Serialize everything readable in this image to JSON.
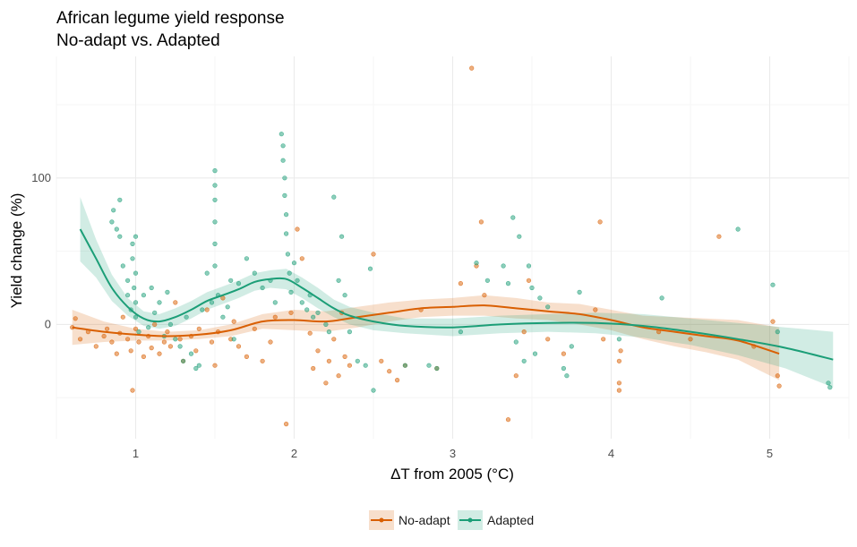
{
  "chart_data": {
    "type": "scatter",
    "title": "African legume yield response",
    "subtitle": "No-adapt vs. Adapted",
    "xlabel": "ΔT from 2005 (°C)",
    "ylabel": "Yield change (%)",
    "xlim": [
      0.5,
      5.5
    ],
    "ylim": [
      -78,
      183
    ],
    "xticks": [
      1,
      2,
      3,
      4,
      5
    ],
    "yticks": [
      0,
      100
    ],
    "grid": true,
    "legend_position": "bottom",
    "series": [
      {
        "name": "No-adapt",
        "color": "#D95F02",
        "points": [
          [
            0.6,
            -2
          ],
          [
            0.62,
            4
          ],
          [
            0.65,
            -10
          ],
          [
            0.7,
            -5
          ],
          [
            0.75,
            -15
          ],
          [
            0.8,
            -8
          ],
          [
            0.82,
            -3
          ],
          [
            0.85,
            -12
          ],
          [
            0.88,
            -20
          ],
          [
            0.9,
            -6
          ],
          [
            0.92,
            5
          ],
          [
            0.95,
            -10
          ],
          [
            0.97,
            -18
          ],
          [
            0.98,
            -45
          ],
          [
            1.0,
            -3
          ],
          [
            1.02,
            -12
          ],
          [
            1.05,
            -22
          ],
          [
            1.08,
            -8
          ],
          [
            1.1,
            -16
          ],
          [
            1.12,
            0
          ],
          [
            1.15,
            -20
          ],
          [
            1.18,
            -12
          ],
          [
            1.2,
            -5
          ],
          [
            1.22,
            -15
          ],
          [
            1.25,
            15
          ],
          [
            1.28,
            -10
          ],
          [
            1.3,
            -25
          ],
          [
            1.35,
            -8
          ],
          [
            1.38,
            -18
          ],
          [
            1.4,
            -3
          ],
          [
            1.45,
            10
          ],
          [
            1.48,
            -12
          ],
          [
            1.5,
            -28
          ],
          [
            1.52,
            -5
          ],
          [
            1.55,
            18
          ],
          [
            1.6,
            -10
          ],
          [
            1.62,
            2
          ],
          [
            1.65,
            -15
          ],
          [
            1.7,
            -22
          ],
          [
            1.75,
            -3
          ],
          [
            1.8,
            -25
          ],
          [
            1.85,
            -12
          ],
          [
            1.88,
            5
          ],
          [
            1.95,
            -68
          ],
          [
            1.98,
            8
          ],
          [
            2.02,
            65
          ],
          [
            2.05,
            45
          ],
          [
            2.1,
            -6
          ],
          [
            2.12,
            -30
          ],
          [
            2.15,
            -18
          ],
          [
            2.2,
            -40
          ],
          [
            2.22,
            -25
          ],
          [
            2.25,
            -10
          ],
          [
            2.28,
            -35
          ],
          [
            2.3,
            8
          ],
          [
            2.32,
            -22
          ],
          [
            2.35,
            -28
          ],
          [
            2.5,
            48
          ],
          [
            2.55,
            -25
          ],
          [
            2.6,
            -32
          ],
          [
            2.65,
            -38
          ],
          [
            2.7,
            -28
          ],
          [
            2.8,
            10
          ],
          [
            2.9,
            -30
          ],
          [
            3.05,
            28
          ],
          [
            3.12,
            175
          ],
          [
            3.15,
            40
          ],
          [
            3.18,
            70
          ],
          [
            3.2,
            20
          ],
          [
            3.35,
            -65
          ],
          [
            3.4,
            -35
          ],
          [
            3.45,
            -5
          ],
          [
            3.48,
            30
          ],
          [
            3.6,
            -10
          ],
          [
            3.7,
            -20
          ],
          [
            3.9,
            10
          ],
          [
            3.95,
            -10
          ],
          [
            3.93,
            70
          ],
          [
            4.05,
            -25
          ],
          [
            4.05,
            -40
          ],
          [
            4.05,
            -45
          ],
          [
            4.06,
            -18
          ],
          [
            4.3,
            -5
          ],
          [
            4.5,
            -10
          ],
          [
            4.68,
            60
          ],
          [
            4.9,
            -15
          ],
          [
            5.02,
            2
          ],
          [
            5.05,
            -35
          ],
          [
            5.06,
            -42
          ]
        ],
        "fit": [
          [
            0.6,
            -2
          ],
          [
            0.8,
            -5
          ],
          [
            1.0,
            -7
          ],
          [
            1.2,
            -8
          ],
          [
            1.4,
            -7
          ],
          [
            1.6,
            -4
          ],
          [
            1.8,
            2
          ],
          [
            2.0,
            3
          ],
          [
            2.2,
            2
          ],
          [
            2.4,
            5
          ],
          [
            2.6,
            8
          ],
          [
            2.8,
            11
          ],
          [
            3.0,
            12
          ],
          [
            3.2,
            13
          ],
          [
            3.4,
            11
          ],
          [
            3.6,
            9
          ],
          [
            3.8,
            7
          ],
          [
            4.0,
            3
          ],
          [
            4.2,
            -2
          ],
          [
            4.4,
            -5
          ],
          [
            4.6,
            -8
          ],
          [
            4.8,
            -11
          ],
          [
            5.06,
            -20
          ]
        ],
        "band": [
          [
            0.6,
            -14,
            10
          ],
          [
            0.8,
            -12,
            2
          ],
          [
            1.0,
            -11,
            -3
          ],
          [
            1.2,
            -11,
            -5
          ],
          [
            1.4,
            -10,
            -4
          ],
          [
            1.6,
            -8,
            0
          ],
          [
            1.8,
            -3,
            7
          ],
          [
            2.0,
            -4,
            10
          ],
          [
            2.2,
            -5,
            9
          ],
          [
            2.4,
            -2,
            12
          ],
          [
            2.6,
            2,
            15
          ],
          [
            2.8,
            5,
            17
          ],
          [
            3.0,
            6,
            18
          ],
          [
            3.2,
            6,
            20
          ],
          [
            3.4,
            4,
            18
          ],
          [
            3.6,
            3,
            15
          ],
          [
            3.8,
            0,
            14
          ],
          [
            4.0,
            -4,
            10
          ],
          [
            4.2,
            -10,
            6
          ],
          [
            4.4,
            -15,
            5
          ],
          [
            4.6,
            -19,
            4
          ],
          [
            4.8,
            -24,
            3
          ],
          [
            5.06,
            -38,
            -2
          ]
        ]
      },
      {
        "name": "Adapted",
        "color": "#1B9E77",
        "points": [
          [
            0.85,
            70
          ],
          [
            0.86,
            78
          ],
          [
            0.88,
            65
          ],
          [
            0.9,
            85
          ],
          [
            0.9,
            60
          ],
          [
            0.92,
            40
          ],
          [
            0.95,
            30
          ],
          [
            0.95,
            20
          ],
          [
            0.97,
            10
          ],
          [
            0.98,
            55
          ],
          [
            0.98,
            45
          ],
          [
            0.99,
            25
          ],
          [
            1.0,
            60
          ],
          [
            1.0,
            35
          ],
          [
            1.0,
            15
          ],
          [
            1.0,
            5
          ],
          [
            1.02,
            -5
          ],
          [
            1.05,
            20
          ],
          [
            1.08,
            -2
          ],
          [
            1.1,
            25
          ],
          [
            1.12,
            8
          ],
          [
            1.15,
            15
          ],
          [
            1.18,
            -8
          ],
          [
            1.2,
            22
          ],
          [
            1.22,
            0
          ],
          [
            1.25,
            -10
          ],
          [
            1.28,
            -15
          ],
          [
            1.3,
            -25
          ],
          [
            1.32,
            5
          ],
          [
            1.35,
            -20
          ],
          [
            1.38,
            -30
          ],
          [
            1.4,
            -28
          ],
          [
            1.42,
            10
          ],
          [
            1.45,
            35
          ],
          [
            1.48,
            15
          ],
          [
            1.5,
            105
          ],
          [
            1.5,
            95
          ],
          [
            1.5,
            85
          ],
          [
            1.5,
            70
          ],
          [
            1.5,
            55
          ],
          [
            1.5,
            40
          ],
          [
            1.52,
            20
          ],
          [
            1.55,
            5
          ],
          [
            1.58,
            12
          ],
          [
            1.6,
            30
          ],
          [
            1.62,
            -10
          ],
          [
            1.65,
            28
          ],
          [
            1.7,
            45
          ],
          [
            1.75,
            35
          ],
          [
            1.8,
            25
          ],
          [
            1.85,
            30
          ],
          [
            1.88,
            15
          ],
          [
            1.92,
            130
          ],
          [
            1.93,
            122
          ],
          [
            1.93,
            112
          ],
          [
            1.94,
            100
          ],
          [
            1.94,
            88
          ],
          [
            1.95,
            75
          ],
          [
            1.95,
            62
          ],
          [
            1.96,
            48
          ],
          [
            1.97,
            35
          ],
          [
            1.98,
            22
          ],
          [
            2.0,
            42
          ],
          [
            2.02,
            30
          ],
          [
            2.05,
            15
          ],
          [
            2.08,
            10
          ],
          [
            2.1,
            20
          ],
          [
            2.12,
            5
          ],
          [
            2.15,
            8
          ],
          [
            2.2,
            0
          ],
          [
            2.22,
            -5
          ],
          [
            2.25,
            87
          ],
          [
            2.28,
            30
          ],
          [
            2.3,
            60
          ],
          [
            2.32,
            20
          ],
          [
            2.35,
            -5
          ],
          [
            2.4,
            -25
          ],
          [
            2.45,
            -28
          ],
          [
            2.48,
            38
          ],
          [
            2.5,
            -45
          ],
          [
            2.7,
            -28
          ],
          [
            2.85,
            -28
          ],
          [
            2.9,
            -30
          ],
          [
            3.05,
            -5
          ],
          [
            3.15,
            42
          ],
          [
            3.22,
            30
          ],
          [
            3.32,
            40
          ],
          [
            3.35,
            28
          ],
          [
            3.38,
            73
          ],
          [
            3.4,
            -12
          ],
          [
            3.42,
            60
          ],
          [
            3.45,
            -25
          ],
          [
            3.48,
            40
          ],
          [
            3.5,
            25
          ],
          [
            3.52,
            -20
          ],
          [
            3.55,
            18
          ],
          [
            3.6,
            12
          ],
          [
            3.7,
            -30
          ],
          [
            3.72,
            -35
          ],
          [
            3.75,
            -15
          ],
          [
            3.8,
            22
          ],
          [
            4.05,
            -10
          ],
          [
            4.32,
            18
          ],
          [
            4.8,
            65
          ],
          [
            5.02,
            27
          ],
          [
            5.05,
            -5
          ],
          [
            5.37,
            -40
          ],
          [
            5.38,
            -43
          ]
        ],
        "fit": [
          [
            0.65,
            65
          ],
          [
            0.75,
            45
          ],
          [
            0.85,
            25
          ],
          [
            0.95,
            12
          ],
          [
            1.05,
            4
          ],
          [
            1.15,
            2
          ],
          [
            1.25,
            5
          ],
          [
            1.35,
            10
          ],
          [
            1.45,
            16
          ],
          [
            1.55,
            20
          ],
          [
            1.65,
            24
          ],
          [
            1.75,
            29
          ],
          [
            1.85,
            31
          ],
          [
            1.95,
            31
          ],
          [
            2.05,
            25
          ],
          [
            2.15,
            18
          ],
          [
            2.25,
            11
          ],
          [
            2.35,
            6
          ],
          [
            2.5,
            2
          ],
          [
            2.7,
            -1
          ],
          [
            3.0,
            -2
          ],
          [
            3.3,
            0
          ],
          [
            3.6,
            1
          ],
          [
            3.9,
            1
          ],
          [
            4.2,
            -1
          ],
          [
            4.5,
            -5
          ],
          [
            4.8,
            -10
          ],
          [
            5.1,
            -16
          ],
          [
            5.4,
            -24
          ]
        ],
        "band": [
          [
            0.65,
            43,
            87
          ],
          [
            0.75,
            32,
            58
          ],
          [
            0.85,
            16,
            34
          ],
          [
            0.95,
            6,
            18
          ],
          [
            1.05,
            -1,
            9
          ],
          [
            1.15,
            -3,
            7
          ],
          [
            1.25,
            -1,
            11
          ],
          [
            1.35,
            4,
            16
          ],
          [
            1.45,
            10,
            22
          ],
          [
            1.55,
            14,
            26
          ],
          [
            1.65,
            18,
            30
          ],
          [
            1.75,
            23,
            35
          ],
          [
            1.85,
            25,
            37
          ],
          [
            1.95,
            24,
            38
          ],
          [
            2.05,
            18,
            32
          ],
          [
            2.15,
            11,
            25
          ],
          [
            2.25,
            5,
            17
          ],
          [
            2.35,
            0,
            12
          ],
          [
            2.5,
            -4,
            8
          ],
          [
            2.7,
            -6,
            4
          ],
          [
            3.0,
            -8,
            4
          ],
          [
            3.3,
            -6,
            6
          ],
          [
            3.6,
            -5,
            7
          ],
          [
            3.9,
            -6,
            8
          ],
          [
            4.2,
            -9,
            7
          ],
          [
            4.5,
            -14,
            4
          ],
          [
            4.8,
            -21,
            1
          ],
          [
            5.1,
            -30,
            -2
          ],
          [
            5.4,
            -43,
            -5
          ]
        ]
      }
    ]
  }
}
